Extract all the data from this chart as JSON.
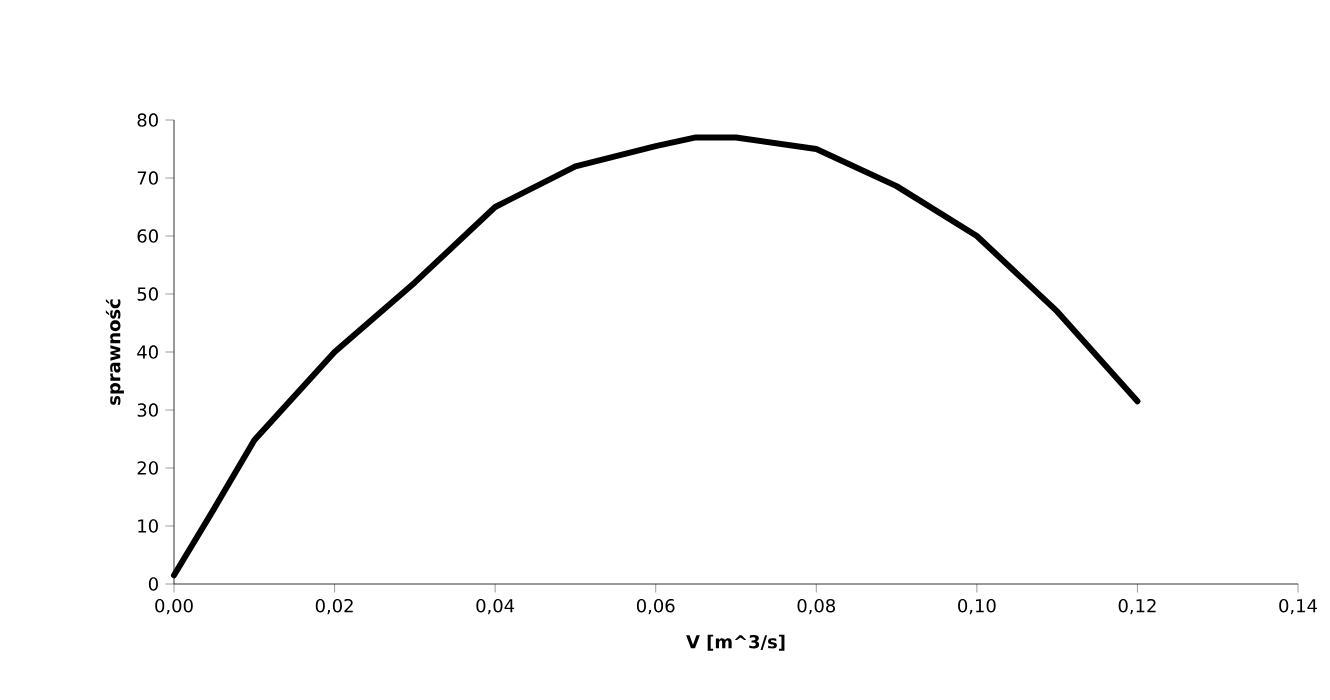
{
  "chart_data": {
    "type": "line",
    "xlabel": "V [m^3/s]",
    "ylabel": "sprawność",
    "x": [
      0.0,
      0.005,
      0.01,
      0.02,
      0.03,
      0.04,
      0.05,
      0.06,
      0.065,
      0.07,
      0.08,
      0.09,
      0.1,
      0.11,
      0.12
    ],
    "series": [
      {
        "color": "#000000",
        "values": [
          1.5,
          13,
          24.8,
          40,
          52,
          65,
          72,
          75.5,
          77,
          77,
          75,
          68.6,
          60,
          47,
          31.5
        ]
      }
    ],
    "xlim": [
      0,
      0.14
    ],
    "ylim": [
      0,
      80
    ],
    "xticks": [
      {
        "value": 0,
        "label": "0,00"
      },
      {
        "value": 0.02,
        "label": "0,02"
      },
      {
        "value": 0.04,
        "label": "0,04"
      },
      {
        "value": 0.06,
        "label": "0,06"
      },
      {
        "value": 0.08,
        "label": "0,08"
      },
      {
        "value": 0.1,
        "label": "0,10"
      },
      {
        "value": 0.12,
        "label": "0,12"
      },
      {
        "value": 0.14,
        "label": "0,14"
      }
    ],
    "yticks": [
      0,
      10,
      20,
      30,
      40,
      50,
      60,
      70,
      80
    ],
    "grid": false,
    "legend": false,
    "marker": "none",
    "line_style": "solid"
  }
}
